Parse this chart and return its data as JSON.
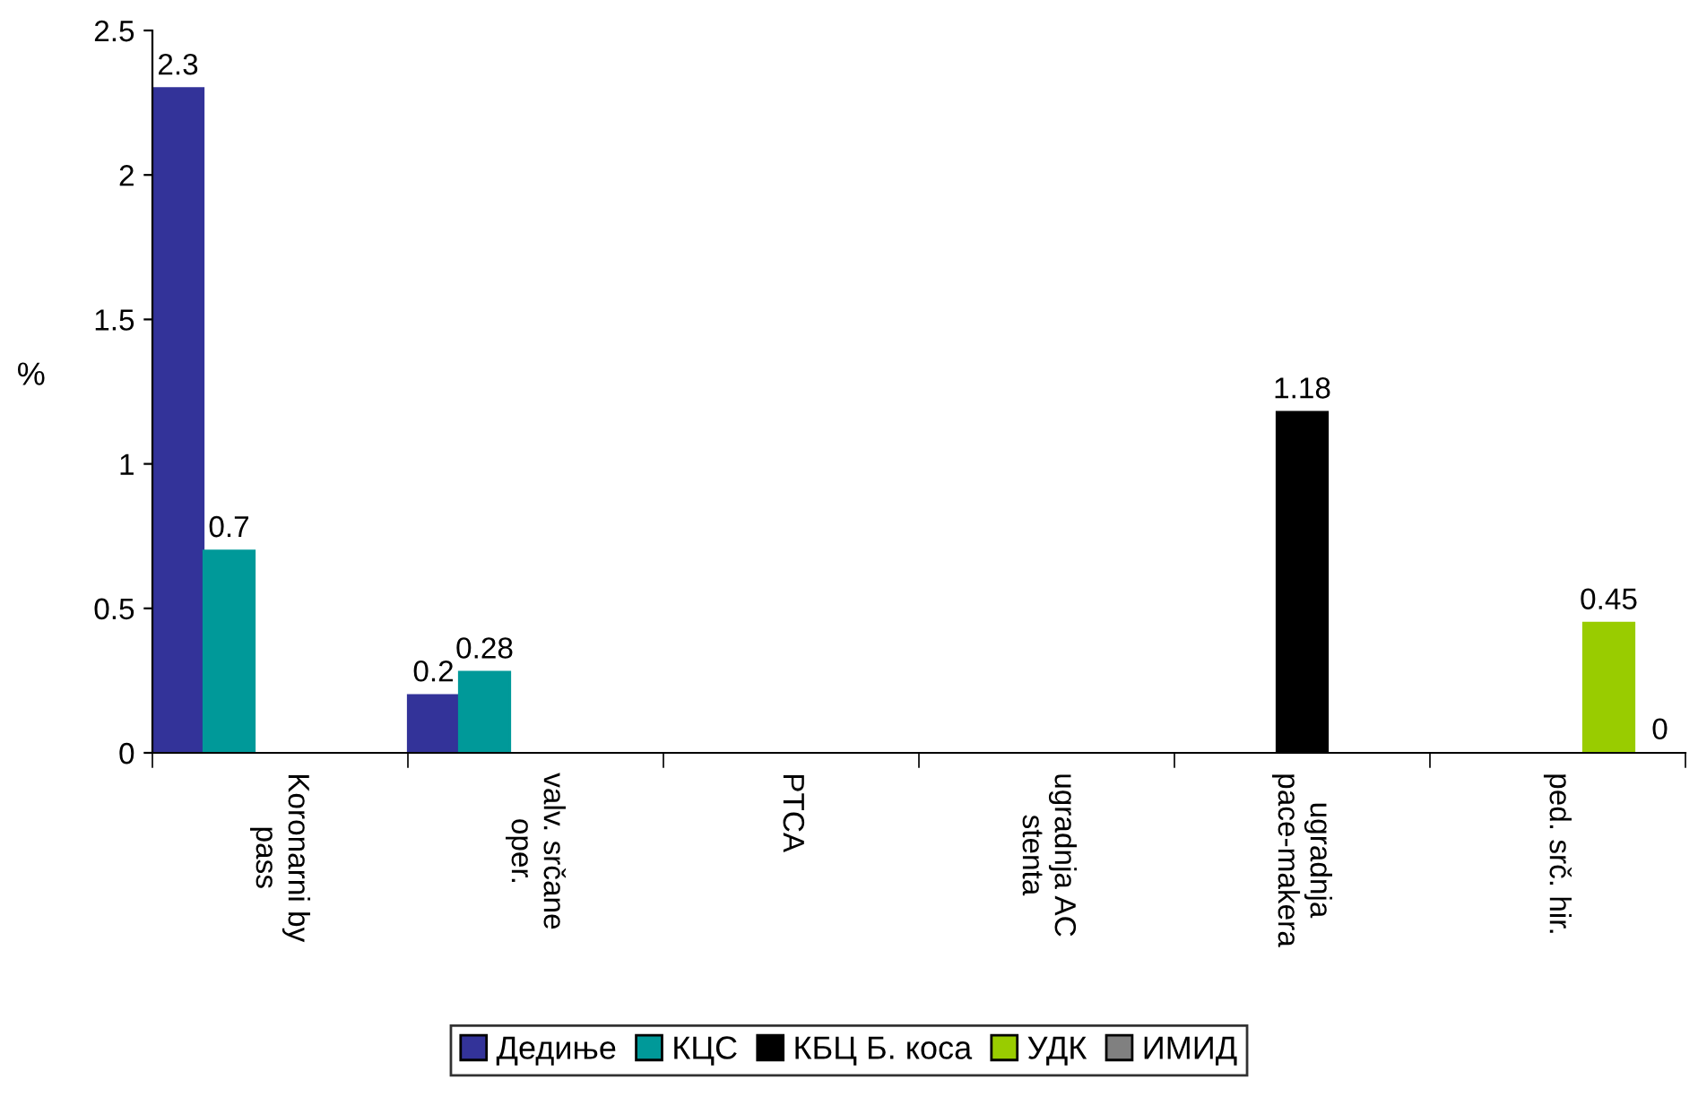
{
  "chart_data": {
    "type": "bar",
    "ylabel": "%",
    "categories": [
      "Koronarni by\npass",
      "valv. srčane\noper.",
      "PTCA",
      "ugradnja AC\nstenta",
      "ugradnja\npace-makera",
      "ped. srč. hir."
    ],
    "series": [
      {
        "name": "Дедиње",
        "color": "#333399",
        "values": [
          2.3,
          0.2,
          null,
          null,
          null,
          null
        ],
        "value_labels": [
          "2.3",
          "0.2",
          null,
          null,
          null,
          null
        ]
      },
      {
        "name": "КЦС",
        "color": "#009999",
        "values": [
          0.7,
          0.28,
          null,
          null,
          null,
          null
        ],
        "value_labels": [
          "0.7",
          "0.28",
          null,
          null,
          null,
          null
        ]
      },
      {
        "name": "КБЦ Б. коса",
        "color": "#000000",
        "values": [
          null,
          null,
          null,
          null,
          1.18,
          null
        ],
        "value_labels": [
          null,
          null,
          null,
          null,
          "1.18",
          null
        ]
      },
      {
        "name": "УДК",
        "color": "#99cc00",
        "values": [
          null,
          null,
          null,
          null,
          null,
          0.45
        ],
        "value_labels": [
          null,
          null,
          null,
          null,
          null,
          "0.45"
        ]
      },
      {
        "name": "ИМИД",
        "color": "#808080",
        "values": [
          null,
          null,
          null,
          null,
          null,
          0
        ],
        "value_labels": [
          null,
          null,
          null,
          null,
          null,
          "0"
        ]
      }
    ],
    "ylim": [
      0,
      2.5
    ],
    "yticks": [
      0,
      0.5,
      1,
      1.5,
      2,
      2.5
    ],
    "grid": false,
    "legend": "bottom"
  }
}
